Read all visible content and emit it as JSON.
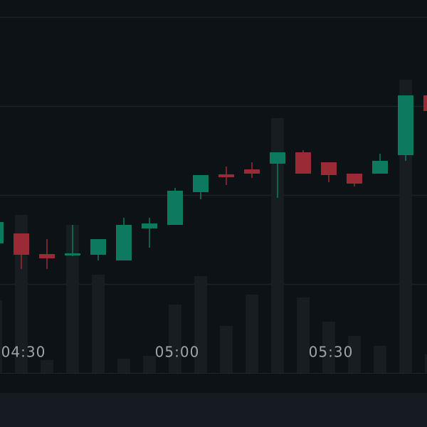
{
  "chart_data": {
    "type": "candlestick",
    "categories": [
      null,
      "04:30",
      null,
      null,
      null,
      null,
      null,
      "05:00",
      null,
      null,
      null,
      null,
      null,
      "05:30",
      null,
      null,
      null,
      null
    ],
    "open": [
      182,
      196,
      167,
      165,
      166,
      158,
      203,
      208,
      254,
      279,
      286,
      294,
      310,
      296,
      280,
      280,
      306,
      390
    ],
    "high": [
      214,
      196,
      188,
      208,
      188,
      218,
      218,
      260,
      278,
      290,
      296,
      310,
      313,
      296,
      280,
      308,
      390,
      390
    ],
    "low": [
      180,
      146,
      146,
      164,
      158,
      158,
      176,
      208,
      244,
      264,
      274,
      246,
      280,
      268,
      262,
      280,
      298,
      368
    ],
    "close": [
      212,
      166,
      161,
      168,
      188,
      208,
      210,
      256,
      278,
      275,
      280,
      310,
      280,
      278,
      266,
      298,
      390,
      368
    ],
    "volume": [
      102,
      222,
      18,
      208,
      138,
      20,
      24,
      96,
      136,
      66,
      110,
      358,
      106,
      72,
      52,
      38,
      412,
      26
    ],
    "up_color": "#0d7a5f",
    "down_color": "#9a2a36",
    "volume_color": "#181d22",
    "ylim": [
      0,
      500
    ],
    "yticks": [
      125,
      250,
      375,
      500
    ],
    "grid": true
  }
}
